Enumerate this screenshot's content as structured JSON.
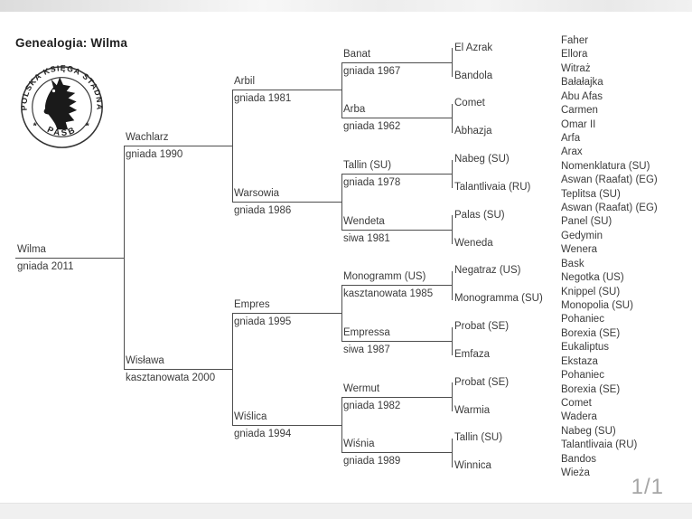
{
  "header": {
    "title": "Genealogia: Wilma"
  },
  "logo": {
    "ring_text": "POLSKA KSIĘGA STADNA",
    "bottom_text": "PASB",
    "side_mark_left": "*",
    "side_mark_right": "*"
  },
  "footer": {
    "page_indicator": "1/1"
  },
  "colors": {
    "line": "#4d4d4d",
    "text": "#3b3b3b",
    "muted": "#a6a6a6",
    "band": "#f0f0f0"
  },
  "pedigree": {
    "root": {
      "name": "Wilma",
      "detail": "gniada 2011",
      "children": [
        {
          "name": "Wachlarz",
          "detail": "gniada 1990",
          "children": [
            {
              "name": "Arbil",
              "detail": "gniada 1981",
              "children": [
                {
                  "name": "Banat",
                  "detail": "gniada 1967",
                  "children": [
                    {
                      "name": "El Azrak"
                    },
                    {
                      "name": "Bandola"
                    }
                  ]
                },
                {
                  "name": "Arba",
                  "detail": "gniada 1962",
                  "children": [
                    {
                      "name": "Comet"
                    },
                    {
                      "name": "Abhazja"
                    }
                  ]
                }
              ]
            },
            {
              "name": "Warsowia",
              "detail": "gniada 1986",
              "children": [
                {
                  "name": "Tallin (SU)",
                  "detail": "gniada 1978",
                  "children": [
                    {
                      "name": "Nabeg (SU)"
                    },
                    {
                      "name": "Talantlivaia (RU)"
                    }
                  ]
                },
                {
                  "name": "Wendeta",
                  "detail": "siwa 1981",
                  "children": [
                    {
                      "name": "Palas (SU)"
                    },
                    {
                      "name": "Weneda"
                    }
                  ]
                }
              ]
            }
          ]
        },
        {
          "name": "Wisława",
          "detail": "kasztanowata 2000",
          "children": [
            {
              "name": "Empres",
              "detail": "gniada 1995",
              "children": [
                {
                  "name": "Monogramm (US)",
                  "detail": "kasztanowata 1985",
                  "children": [
                    {
                      "name": "Negatraz (US)"
                    },
                    {
                      "name": "Monogramma (SU)"
                    }
                  ]
                },
                {
                  "name": "Empressa",
                  "detail": "siwa 1987",
                  "children": [
                    {
                      "name": "Probat (SE)"
                    },
                    {
                      "name": "Emfaza"
                    }
                  ]
                }
              ]
            },
            {
              "name": "Wiślica",
              "detail": "gniada 1994",
              "children": [
                {
                  "name": "Wermut",
                  "detail": "gniada 1982",
                  "children": [
                    {
                      "name": "Probat (SE)"
                    },
                    {
                      "name": "Warmia"
                    }
                  ]
                },
                {
                  "name": "Wiśnia",
                  "detail": "gniada 1989",
                  "children": [
                    {
                      "name": "Tallin (SU)"
                    },
                    {
                      "name": "Winnica"
                    }
                  ]
                }
              ]
            }
          ]
        }
      ]
    },
    "generation6": [
      "Faher",
      "Ellora",
      "Witraż",
      "Bałałajka",
      "Abu Afas",
      "Carmen",
      "Omar II",
      "Arfa",
      "Arax",
      "Nomenklatura (SU)",
      "Aswan (Raafat) (EG)",
      "Teplitsa (SU)",
      "Aswan (Raafat) (EG)",
      "Panel (SU)",
      "Gedymin",
      "Wenera",
      "Bask",
      "Negotka (US)",
      "Knippel (SU)",
      "Monopolia (SU)",
      "Pohaniec",
      "Borexia (SE)",
      "Eukaliptus",
      "Ekstaza",
      "Pohaniec",
      "Borexia (SE)",
      "Comet",
      "Wadera",
      "Nabeg (SU)",
      "Talantlivaia (RU)",
      "Bandos",
      "Wieża"
    ]
  }
}
